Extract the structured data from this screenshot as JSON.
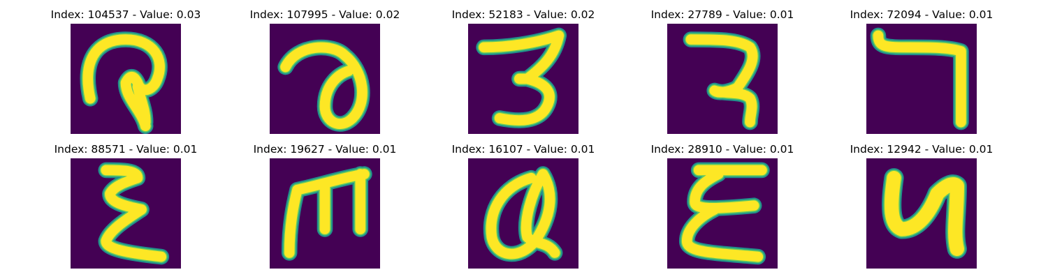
{
  "colors": {
    "background": "#440154",
    "stroke_outer": "#21918c",
    "stroke_mid": "#5ec962",
    "stroke_core": "#fde725"
  },
  "panels": [
    {
      "title": "Index: 104537 - Value: 0.03",
      "glyph": "curl-loop-down-icon"
    },
    {
      "title": "Index: 107995 - Value: 0.02",
      "glyph": "curved-hook-loop-icon"
    },
    {
      "title": "Index: 52183 - Value: 0.02",
      "glyph": "three-shape-icon"
    },
    {
      "title": "Index: 27789 - Value: 0.01",
      "glyph": "hooked-two-shape-icon"
    },
    {
      "title": "Index: 72094 - Value: 0.01",
      "glyph": "seven-shape-icon"
    },
    {
      "title": "Index: 88571 - Value: 0.01",
      "glyph": "sigma-shape-icon"
    },
    {
      "title": "Index: 19627 - Value: 0.01",
      "glyph": "m-shape-icon"
    },
    {
      "title": "Index: 16107 - Value: 0.01",
      "glyph": "q-loop-shape-icon"
    },
    {
      "title": "Index: 28910 - Value: 0.01",
      "glyph": "epsilon-shape-icon"
    },
    {
      "title": "Index: 12942 - Value: 0.01",
      "glyph": "n-shape-icon"
    }
  ]
}
